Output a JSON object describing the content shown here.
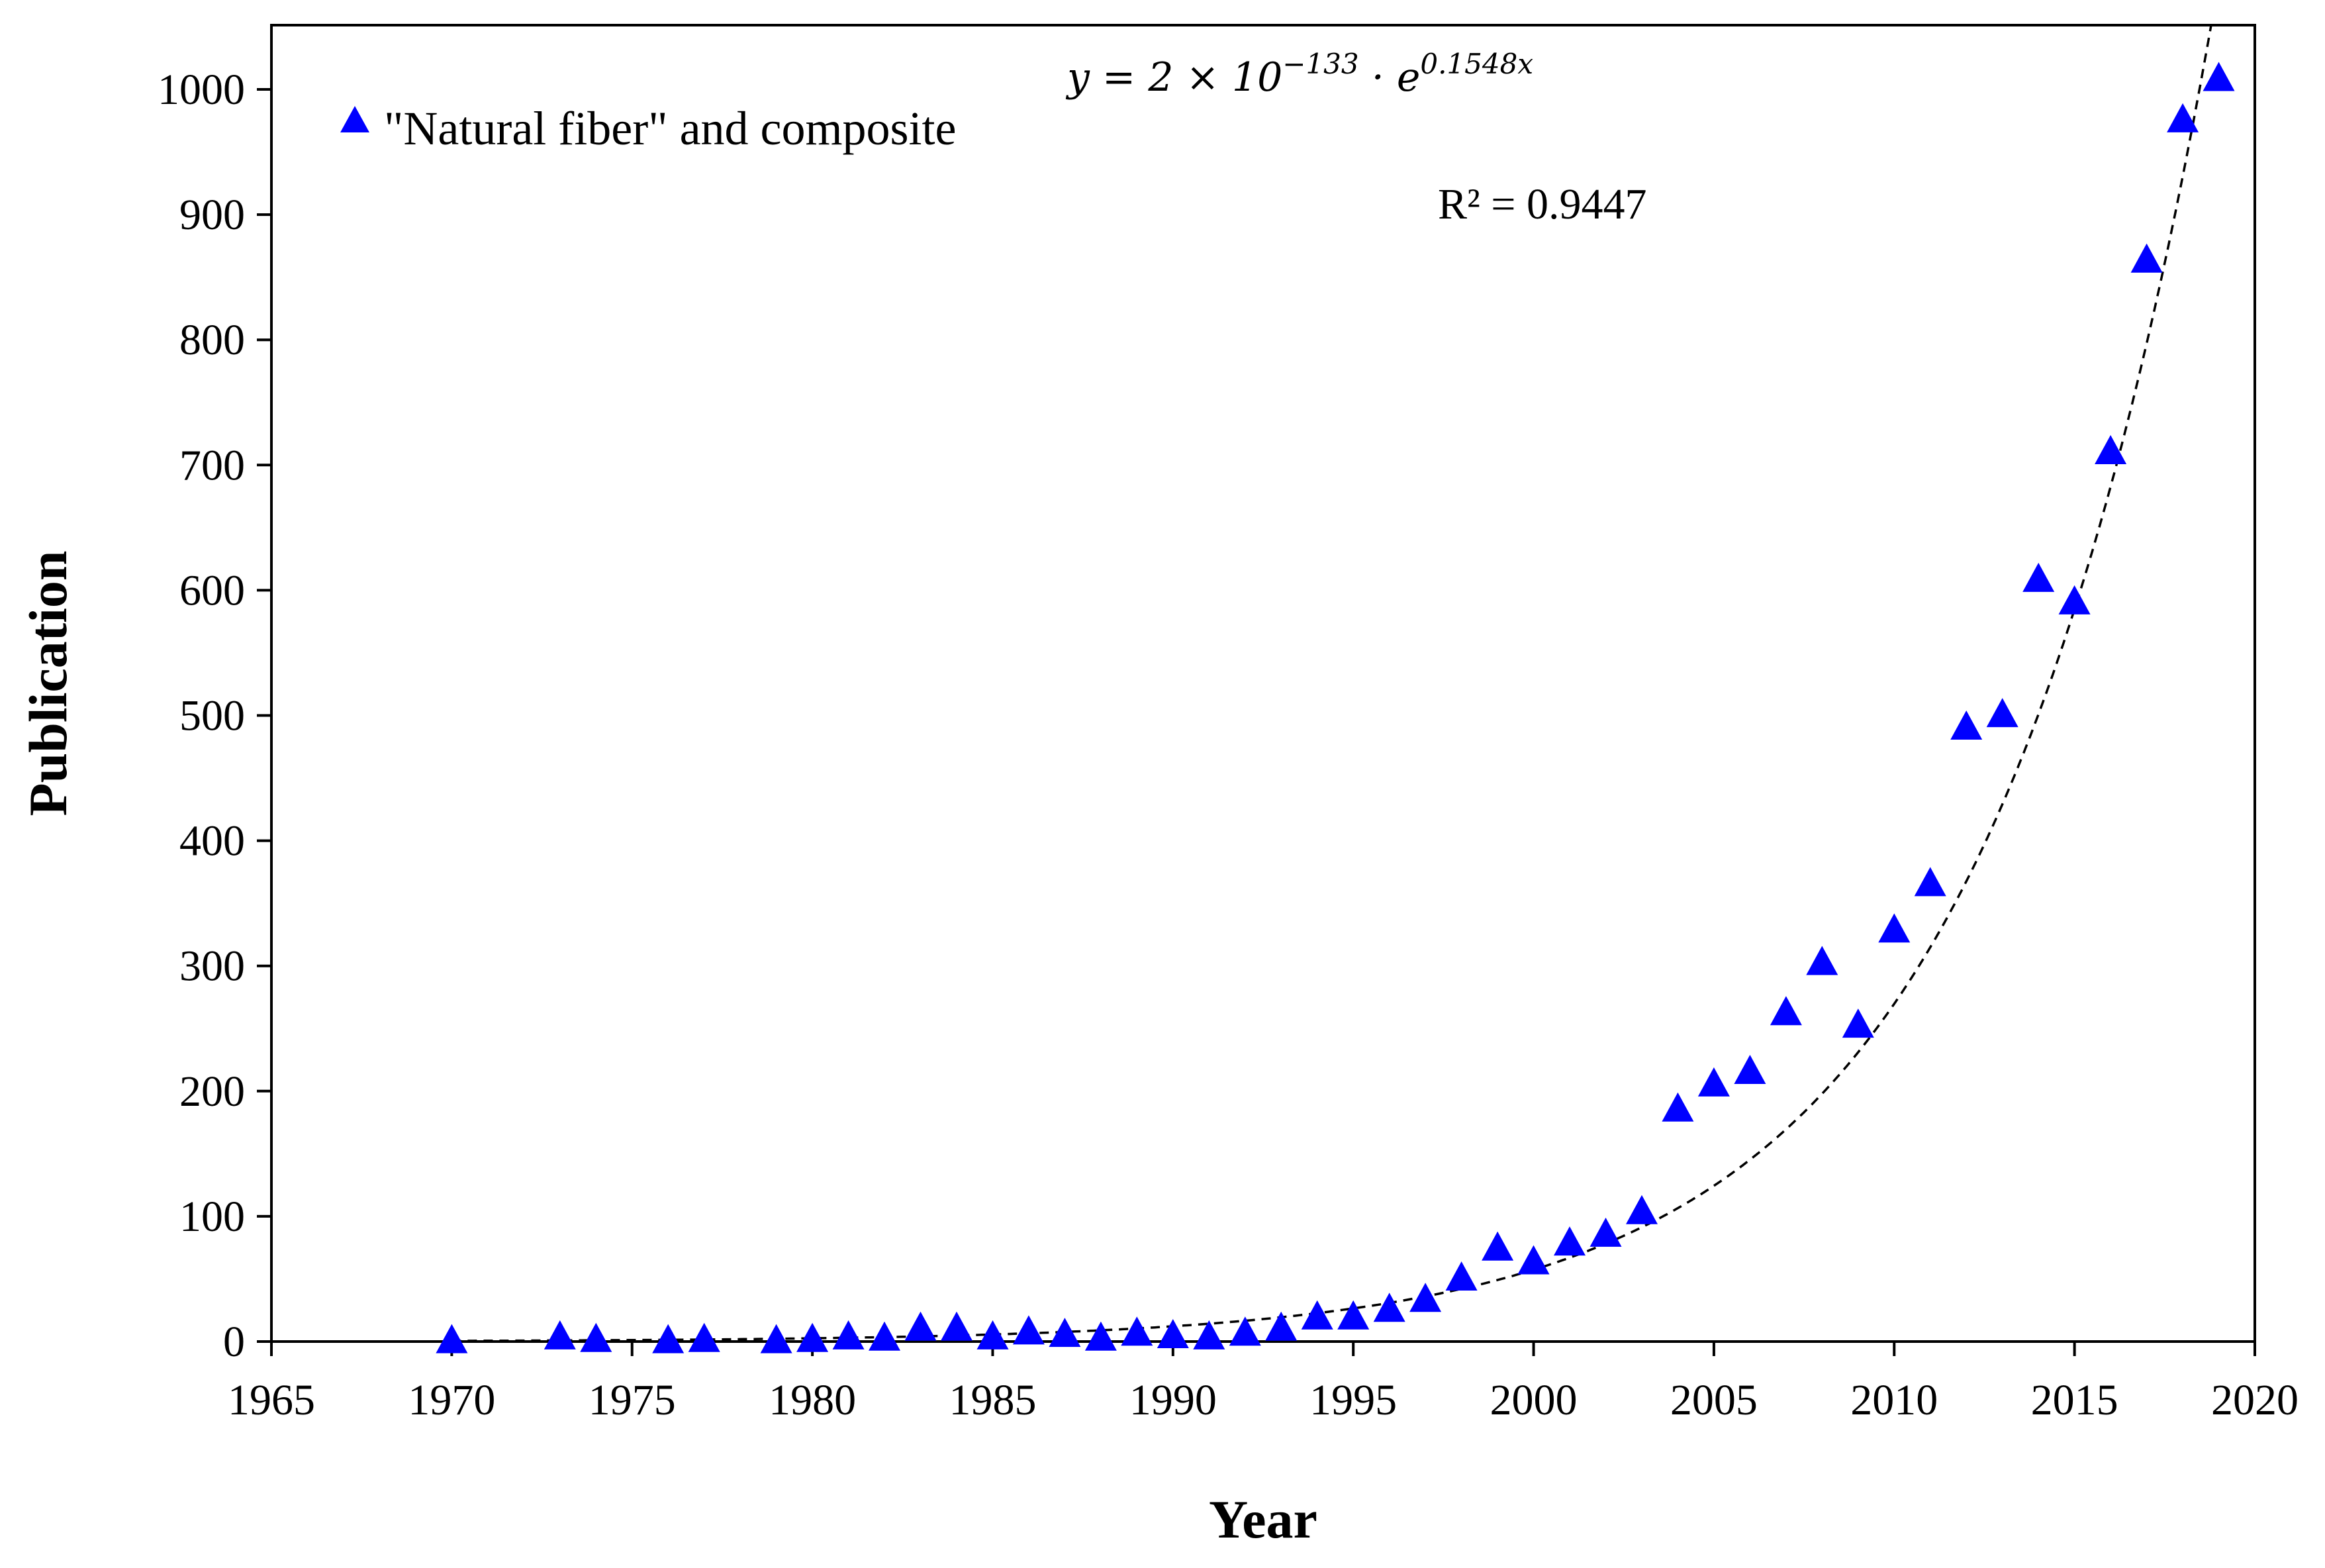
{
  "chart_data": {
    "type": "scatter",
    "title": "",
    "xlabel": "Year",
    "ylabel": "Publication",
    "xlim": [
      1965,
      2020
    ],
    "ylim": [
      0,
      1050
    ],
    "xticks": [
      1965,
      1970,
      1975,
      1980,
      1985,
      1990,
      1995,
      2000,
      2005,
      2010,
      2015,
      2020
    ],
    "yticks": [
      0,
      100,
      200,
      300,
      400,
      500,
      600,
      700,
      800,
      900,
      1000
    ],
    "grid": false,
    "legend": {
      "position": "top-left",
      "entries": [
        "\"Natural fiber\" and composite"
      ]
    },
    "series": [
      {
        "name": "\"Natural fiber\" and composite",
        "marker": "triangle",
        "color": "#0000ff",
        "x": [
          1970,
          1973,
          1974,
          1976,
          1977,
          1979,
          1980,
          1981,
          1982,
          1983,
          1984,
          1985,
          1986,
          1987,
          1988,
          1989,
          1990,
          1991,
          1992,
          1993,
          1994,
          1995,
          1996,
          1997,
          1998,
          1999,
          2000,
          2001,
          2002,
          2003,
          2004,
          2005,
          2006,
          2007,
          2008,
          2009,
          2010,
          2011,
          2012,
          2013,
          2014,
          2015,
          2016,
          2017,
          2018,
          2019
        ],
        "values": [
          0,
          3,
          1,
          0,
          1,
          0,
          1,
          3,
          2,
          10,
          10,
          3,
          7,
          5,
          2,
          6,
          4,
          3,
          6,
          10,
          19,
          19,
          25,
          33,
          50,
          74,
          63,
          78,
          85,
          103,
          185,
          205,
          215,
          262,
          302,
          252,
          328,
          365,
          490,
          500,
          608,
          590,
          710,
          863,
          975,
          1008
        ]
      }
    ],
    "trendline": {
      "type": "exponential",
      "a": 2e-133,
      "b": 0.1548,
      "style": "dashed",
      "color": "#000000",
      "equation_prefix": "y = 2 × 10",
      "equation_exponent": "−133",
      "equation_mid": " · e",
      "equation_exp2": "0.1548x",
      "r2_label": "R² = 0.9447"
    }
  }
}
